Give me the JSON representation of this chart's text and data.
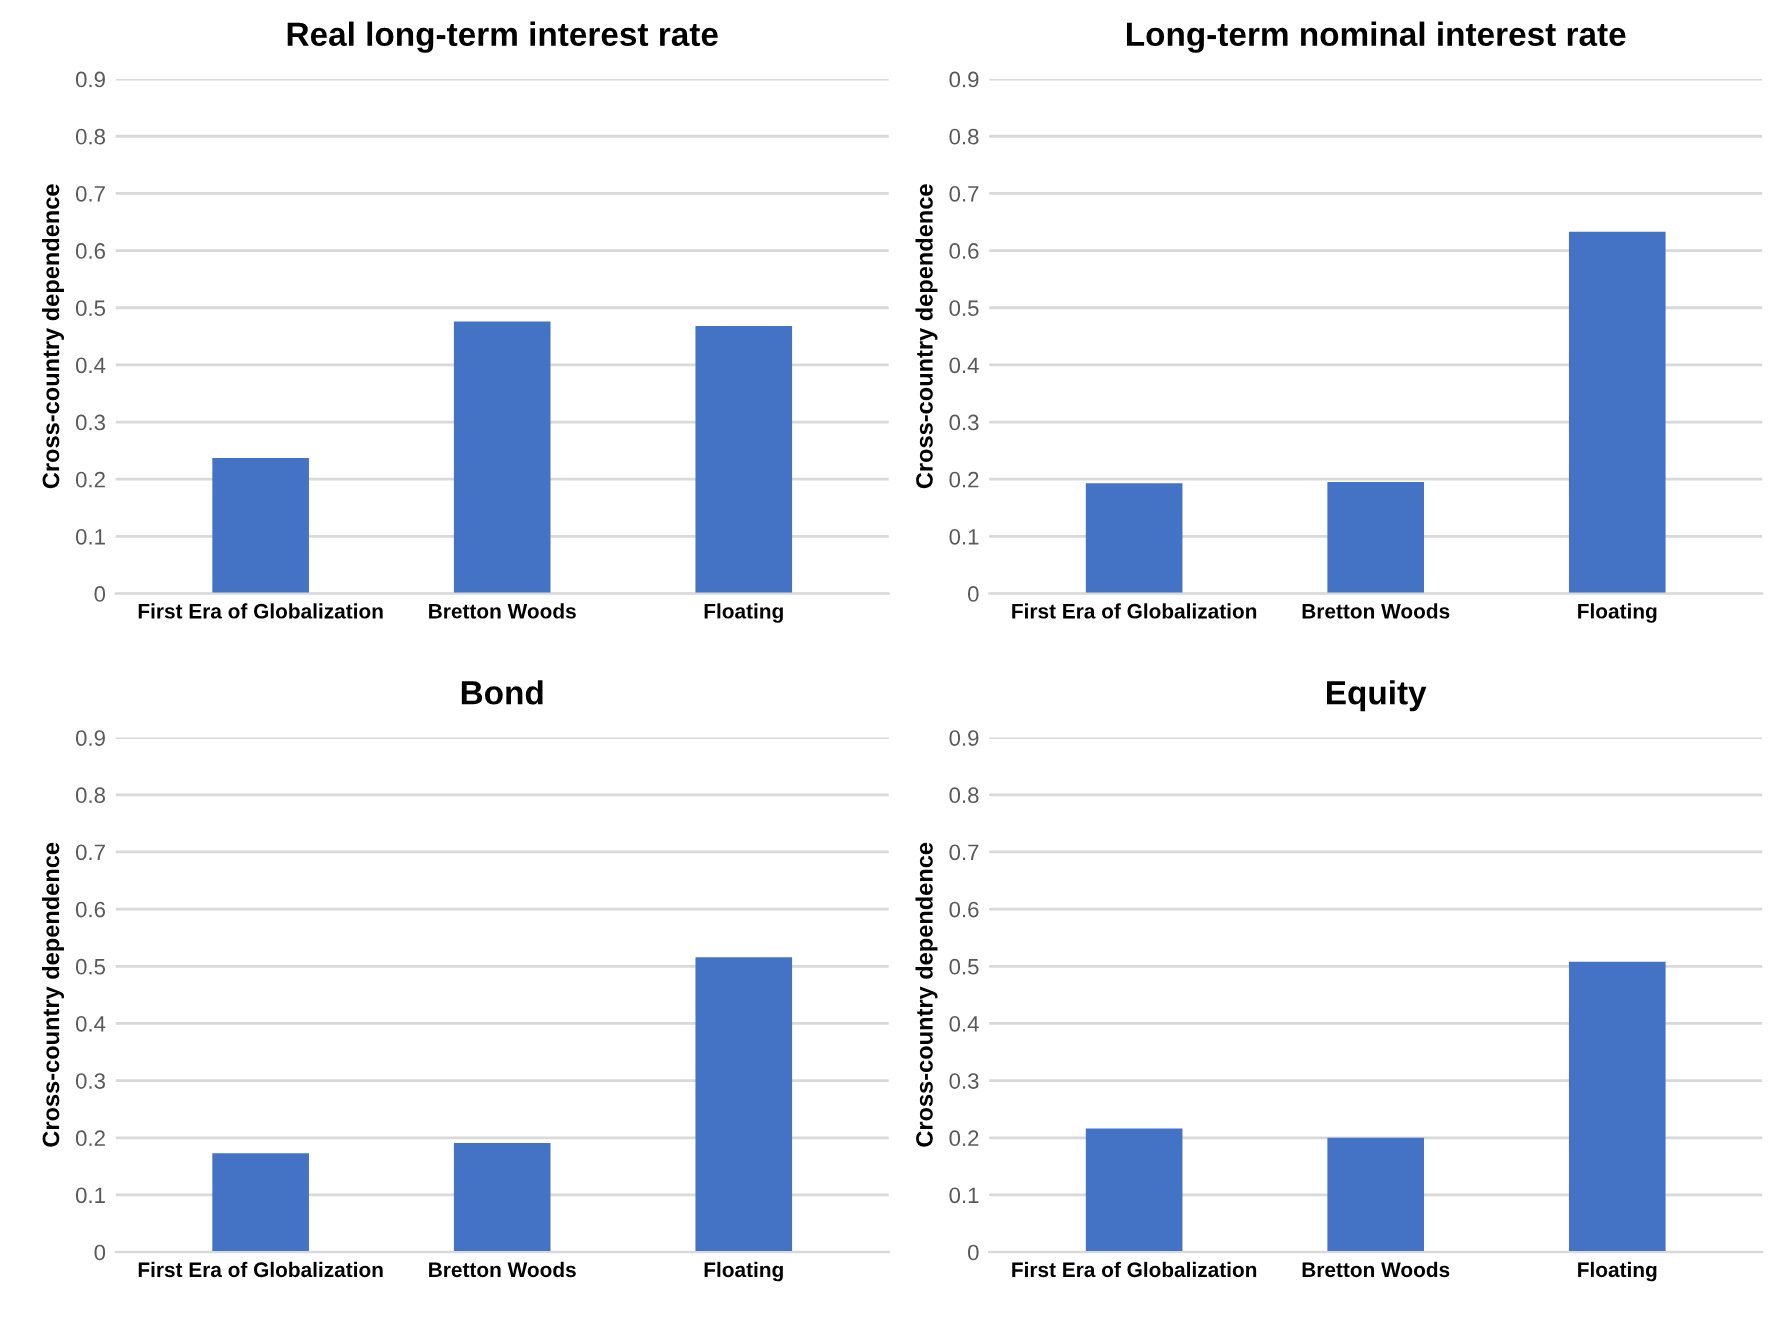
{
  "chart_data": [
    {
      "type": "bar",
      "title": "Real long-term interest rate",
      "ylabel": "Cross-country dependence",
      "categories": [
        "First Era of Globalization",
        "Bretton Woods",
        "Floating"
      ],
      "values": [
        0.237,
        0.476,
        0.468
      ],
      "color": "#4472c4",
      "ylim": [
        0,
        0.9
      ],
      "yticks": [
        0,
        0.1,
        0.2,
        0.3,
        0.4,
        0.5,
        0.6,
        0.7,
        0.8,
        0.9
      ],
      "grid": "y"
    },
    {
      "type": "bar",
      "title": "Long-term nominal interest rate",
      "ylabel": "Cross-country dependence",
      "categories": [
        "First Era of Globalization",
        "Bretton Woods",
        "Floating"
      ],
      "values": [
        0.193,
        0.195,
        0.633
      ],
      "color": "#4472c4",
      "ylim": [
        0,
        0.9
      ],
      "yticks": [
        0,
        0.1,
        0.2,
        0.3,
        0.4,
        0.5,
        0.6,
        0.7,
        0.8,
        0.9
      ],
      "grid": "y"
    },
    {
      "type": "bar",
      "title": "Bond",
      "ylabel": "Cross-country dependence",
      "categories": [
        "First Era of Globalization",
        "Bretton Woods",
        "Floating"
      ],
      "values": [
        0.173,
        0.191,
        0.516
      ],
      "color": "#4472c4",
      "ylim": [
        0,
        0.9
      ],
      "yticks": [
        0,
        0.1,
        0.2,
        0.3,
        0.4,
        0.5,
        0.6,
        0.7,
        0.8,
        0.9
      ],
      "grid": "y"
    },
    {
      "type": "bar",
      "title": "Equity",
      "ylabel": "Cross-country dependence",
      "categories": [
        "First Era of Globalization",
        "Bretton Woods",
        "Floating"
      ],
      "values": [
        0.216,
        0.2,
        0.508
      ],
      "color": "#4472c4",
      "ylim": [
        0,
        0.9
      ],
      "yticks": [
        0,
        0.1,
        0.2,
        0.3,
        0.4,
        0.5,
        0.6,
        0.7,
        0.8,
        0.9
      ],
      "grid": "y"
    }
  ]
}
